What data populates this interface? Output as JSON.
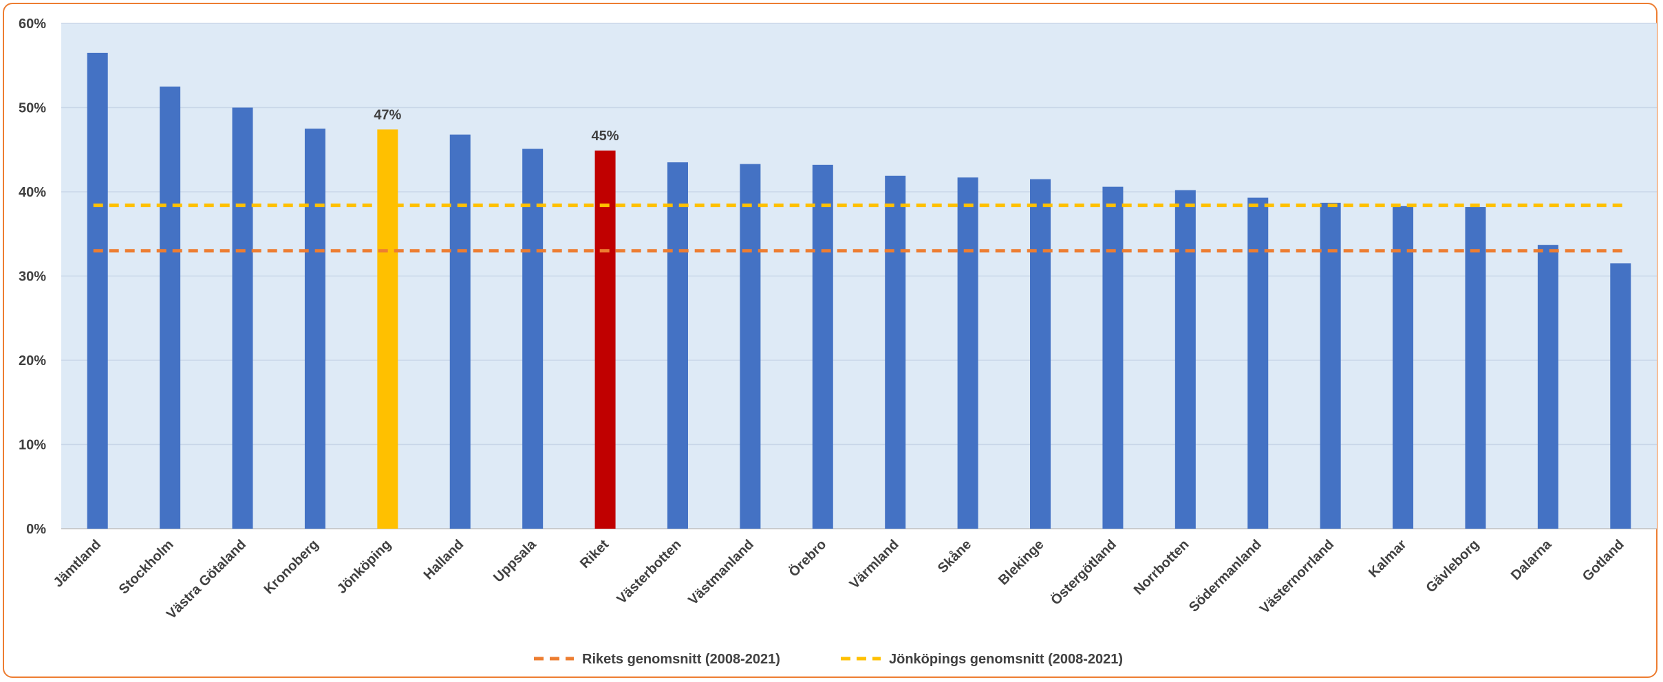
{
  "chart_data": {
    "type": "bar",
    "title": "",
    "xlabel": "",
    "ylabel": "",
    "ylim": [
      0,
      0.6
    ],
    "yticks": [
      "0%",
      "10%",
      "20%",
      "30%",
      "40%",
      "50%",
      "60%"
    ],
    "grid": true,
    "legend_position": "bottom",
    "categories": [
      "Jämtland",
      "Stockholm",
      "Västra Götaland",
      "Kronoberg",
      "Jönköping",
      "Halland",
      "Uppsala",
      "Riket",
      "Västerbotten",
      "Västmanland",
      "Örebro",
      "Värmland",
      "Skåne",
      "Blekinge",
      "Östergötland",
      "Norrbotten",
      "Södermanland",
      "Västernorrland",
      "Kalmar",
      "Gävleborg",
      "Dalarna",
      "Gotland"
    ],
    "values": [
      0.565,
      0.525,
      0.5,
      0.475,
      0.474,
      0.468,
      0.451,
      0.449,
      0.435,
      0.433,
      0.432,
      0.419,
      0.417,
      0.415,
      0.406,
      0.402,
      0.393,
      0.387,
      0.383,
      0.382,
      0.337,
      0.315
    ],
    "bar_colors": {
      "default": "#4472C4",
      "Jönköping": "#FFC000",
      "Riket": "#C00000"
    },
    "data_labels": [
      {
        "category": "Jönköping",
        "text": "47%"
      },
      {
        "category": "Riket",
        "text": "45%"
      }
    ],
    "reference_lines": [
      {
        "name": "Rikets genomsnitt (2008-2021)",
        "value": 0.33,
        "color": "#ED7D31",
        "style": "dashed"
      },
      {
        "name": "Jönköpings genomsnitt (2008-2021)",
        "value": 0.384,
        "color": "#FFC000",
        "style": "dashed"
      }
    ],
    "plot_background": "#DEEAF6",
    "gridline_color": "#C8D6E8",
    "frame_color": "#ED7D31"
  }
}
